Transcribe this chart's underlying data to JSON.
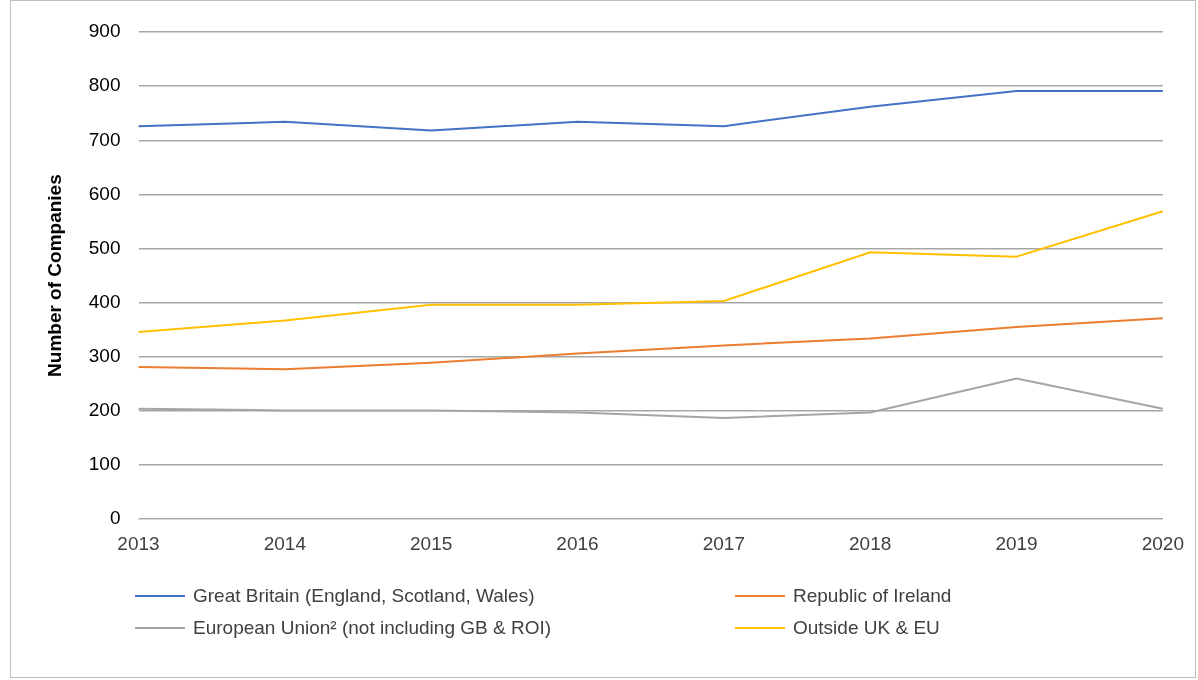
{
  "chart_data": {
    "type": "line",
    "ylabel": "Number of Companies",
    "categories": [
      "2013",
      "2014",
      "2015",
      "2016",
      "2017",
      "2018",
      "2019",
      "2020"
    ],
    "series": [
      {
        "name": "Great Britain (England, Scotland, Wales)",
        "color": "#4472c4",
        "values": [
          726,
          734,
          718,
          734,
          726,
          762,
          791,
          791
        ]
      },
      {
        "name": "Republic of Ireland",
        "color": "#ed7d31",
        "values": [
          281,
          277,
          289,
          306,
          321,
          334,
          355,
          371
        ]
      },
      {
        "name": "European Union² (not including GB & ROI)",
        "color": "#a5a5a5",
        "values": [
          204,
          201,
          201,
          197,
          187,
          197,
          260,
          204
        ]
      },
      {
        "name": "Outside UK & EU",
        "color": "#ffc000",
        "values": [
          346,
          367,
          396,
          396,
          403,
          493,
          485,
          569
        ]
      }
    ],
    "ylim": [
      0,
      900
    ],
    "yticks": [
      0,
      100,
      200,
      300,
      400,
      500,
      600,
      700,
      800,
      900
    ],
    "grid": "y",
    "legend": "bottom",
    "marker": "none",
    "line_style": "solid"
  }
}
